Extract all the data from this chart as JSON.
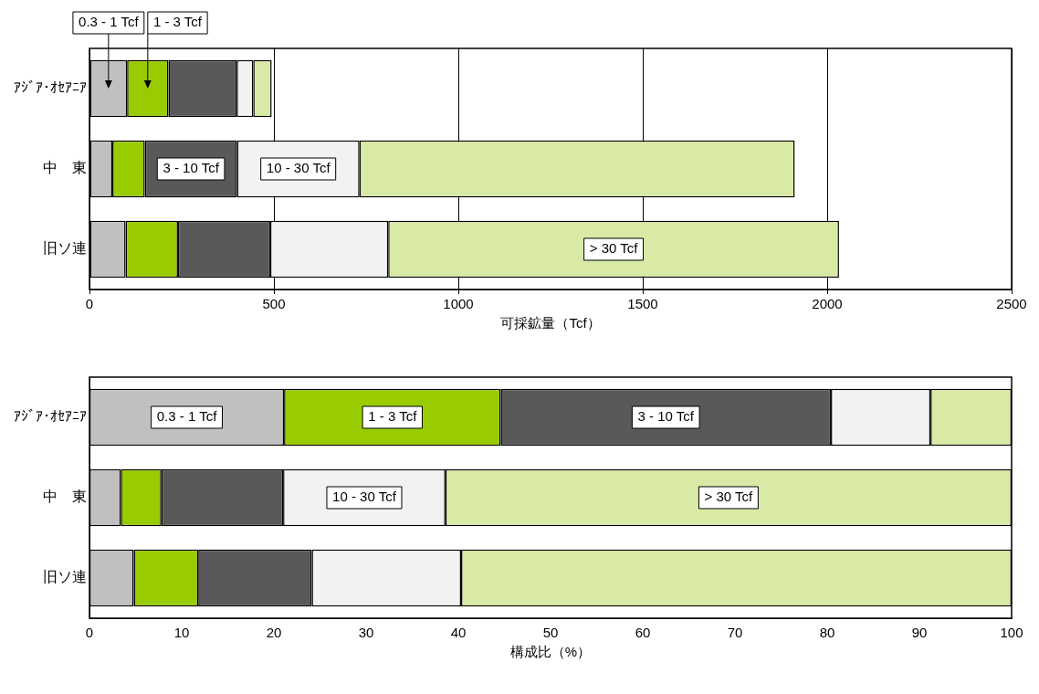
{
  "chart_data": [
    {
      "type": "bar",
      "orientation": "horizontal",
      "stacked": true,
      "xlabel": "可採鉱量（Tcf）",
      "grid": "x",
      "xlim": [
        0,
        2500
      ],
      "xticks": [
        0,
        500,
        1000,
        1500,
        2000,
        2500
      ],
      "categories": [
        "ｱｼﾞｱ･ｵｾｱﾆｱ",
        "中　東",
        "旧ソ連"
      ],
      "series": [
        {
          "name": "0.3 - 1 Tcf",
          "color": "#c0c0c0",
          "values": [
            102,
            62,
            98
          ]
        },
        {
          "name": "1 - 3 Tcf",
          "color": "#99cc00",
          "values": [
            112,
            88,
            142
          ]
        },
        {
          "name": "3 - 10 Tcf",
          "color": "#595959",
          "values": [
            185,
            250,
            250
          ]
        },
        {
          "name": "10 - 30 Tcf",
          "color": "#f2f2f2",
          "values": [
            45,
            332,
            320
          ]
        },
        {
          "name": "> 30 Tcf",
          "color": "#d9eaa6",
          "values": [
            50,
            1180,
            1222
          ]
        }
      ]
    },
    {
      "type": "bar",
      "orientation": "horizontal",
      "stacked": true,
      "xlabel": "構成比（%）",
      "grid": false,
      "xlim": [
        0,
        100
      ],
      "xticks": [
        0,
        10,
        20,
        30,
        40,
        50,
        60,
        70,
        80,
        90,
        100
      ],
      "categories": [
        "ｱｼﾞｱ･ｵｾｱﾆｱ",
        "中　東",
        "旧ソ連"
      ],
      "series": [
        {
          "name": "0.3 - 1 Tcf",
          "color": "#c0c0c0",
          "values": [
            21.1,
            3.4,
            4.8
          ]
        },
        {
          "name": "1 - 3 Tcf",
          "color": "#99cc00",
          "values": [
            23.5,
            4.4,
            7.0
          ]
        },
        {
          "name": "3 - 10 Tcf",
          "color": "#595959",
          "values": [
            35.8,
            13.2,
            12.3
          ]
        },
        {
          "name": "10 - 30 Tcf",
          "color": "#f2f2f2",
          "values": [
            10.8,
            17.6,
            16.2
          ]
        },
        {
          "name": "> 30 Tcf",
          "color": "#d9eaa6",
          "values": [
            8.8,
            61.4,
            59.7
          ]
        }
      ]
    }
  ]
}
